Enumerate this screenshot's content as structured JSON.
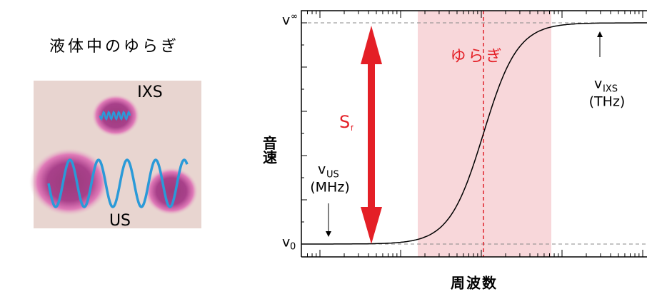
{
  "panel": {
    "title": "液体中のゆらぎ",
    "ixs": "IXS",
    "us": "US"
  },
  "plot": {
    "y_label": "音速",
    "x_label": "周波数",
    "v_inf": {
      "main": "v",
      "sub": "∞"
    },
    "v_0": {
      "main": "v",
      "sub": "0"
    },
    "fluctuation": "ゆらぎ",
    "s_f": {
      "main": "S",
      "sub": "f"
    },
    "v_us": {
      "main": "v",
      "sub": "US",
      "unit": "(MHz)"
    },
    "v_ixs": {
      "main": "v",
      "sub": "IXS",
      "unit": "(THz)"
    }
  }
}
